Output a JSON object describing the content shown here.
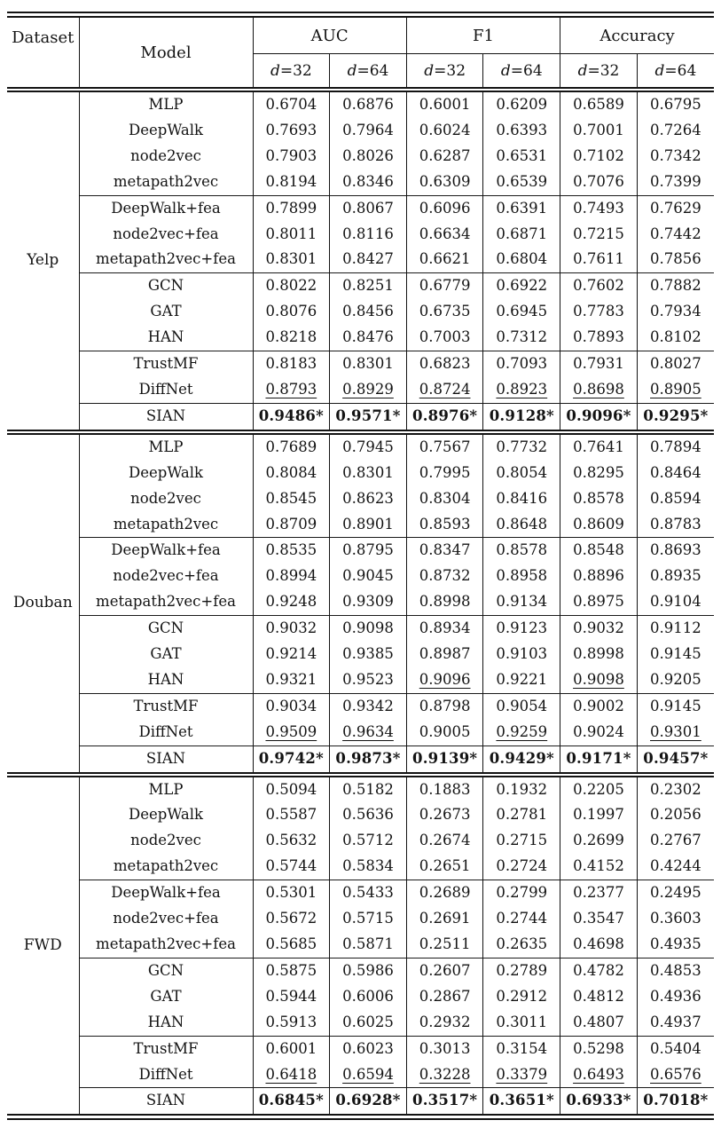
{
  "page": {
    "background": "#ffffff",
    "text_color": "#131313"
  },
  "table": {
    "header": {
      "dataset": "Dataset",
      "model": "Model",
      "metrics": [
        "AUC",
        "F1",
        "Accuracy"
      ],
      "dims": [
        "d=32",
        "d=64"
      ]
    },
    "sections": [
      {
        "dataset": "Yelp",
        "groups": [
          {
            "rows": [
              {
                "model": "MLP",
                "values": [
                  "0.6704",
                  "0.6876",
                  "0.6001",
                  "0.6209",
                  "0.6589",
                  "0.6795"
                ]
              },
              {
                "model": "DeepWalk",
                "values": [
                  "0.7693",
                  "0.7964",
                  "0.6024",
                  "0.6393",
                  "0.7001",
                  "0.7264"
                ]
              },
              {
                "model": "node2vec",
                "values": [
                  "0.7903",
                  "0.8026",
                  "0.6287",
                  "0.6531",
                  "0.7102",
                  "0.7342"
                ]
              },
              {
                "model": "metapath2vec",
                "values": [
                  "0.8194",
                  "0.8346",
                  "0.6309",
                  "0.6539",
                  "0.7076",
                  "0.7399"
                ]
              }
            ]
          },
          {
            "rows": [
              {
                "model": "DeepWalk+fea",
                "values": [
                  "0.7899",
                  "0.8067",
                  "0.6096",
                  "0.6391",
                  "0.7493",
                  "0.7629"
                ]
              },
              {
                "model": "node2vec+fea",
                "values": [
                  "0.8011",
                  "0.8116",
                  "0.6634",
                  "0.6871",
                  "0.7215",
                  "0.7442"
                ]
              },
              {
                "model": "metapath2vec+fea",
                "values": [
                  "0.8301",
                  "0.8427",
                  "0.6621",
                  "0.6804",
                  "0.7611",
                  "0.7856"
                ]
              }
            ]
          },
          {
            "rows": [
              {
                "model": "GCN",
                "values": [
                  "0.8022",
                  "0.8251",
                  "0.6779",
                  "0.6922",
                  "0.7602",
                  "0.7882"
                ]
              },
              {
                "model": "GAT",
                "values": [
                  "0.8076",
                  "0.8456",
                  "0.6735",
                  "0.6945",
                  "0.7783",
                  "0.7934"
                ]
              },
              {
                "model": "HAN",
                "values": [
                  "0.8218",
                  "0.8476",
                  "0.7003",
                  "0.7312",
                  "0.7893",
                  "0.8102"
                ]
              }
            ]
          },
          {
            "rows": [
              {
                "model": "TrustMF",
                "values": [
                  "0.8183",
                  "0.8301",
                  "0.6823",
                  "0.7093",
                  "0.7931",
                  "0.8027"
                ]
              },
              {
                "model": "DiffNet",
                "values": [
                  "0.8793",
                  "0.8929",
                  "0.8724",
                  "0.8923",
                  "0.8698",
                  "0.8905"
                ],
                "underline": [
                  0,
                  1,
                  2,
                  3,
                  4,
                  5
                ]
              }
            ]
          },
          {
            "rows": [
              {
                "model": "SIAN",
                "values": [
                  "0.9486*",
                  "0.9571*",
                  "0.8976*",
                  "0.9128*",
                  "0.9096*",
                  "0.9295*"
                ],
                "bold": true
              }
            ]
          }
        ]
      },
      {
        "dataset": "Douban",
        "groups": [
          {
            "rows": [
              {
                "model": "MLP",
                "values": [
                  "0.7689",
                  "0.7945",
                  "0.7567",
                  "0.7732",
                  "0.7641",
                  "0.7894"
                ]
              },
              {
                "model": "DeepWalk",
                "values": [
                  "0.8084",
                  "0.8301",
                  "0.7995",
                  "0.8054",
                  "0.8295",
                  "0.8464"
                ]
              },
              {
                "model": "node2vec",
                "values": [
                  "0.8545",
                  "0.8623",
                  "0.8304",
                  "0.8416",
                  "0.8578",
                  "0.8594"
                ]
              },
              {
                "model": "metapath2vec",
                "values": [
                  "0.8709",
                  "0.8901",
                  "0.8593",
                  "0.8648",
                  "0.8609",
                  "0.8783"
                ]
              }
            ]
          },
          {
            "rows": [
              {
                "model": "DeepWalk+fea",
                "values": [
                  "0.8535",
                  "0.8795",
                  "0.8347",
                  "0.8578",
                  "0.8548",
                  "0.8693"
                ]
              },
              {
                "model": "node2vec+fea",
                "values": [
                  "0.8994",
                  "0.9045",
                  "0.8732",
                  "0.8958",
                  "0.8896",
                  "0.8935"
                ]
              },
              {
                "model": "metapath2vec+fea",
                "values": [
                  "0.9248",
                  "0.9309",
                  "0.8998",
                  "0.9134",
                  "0.8975",
                  "0.9104"
                ]
              }
            ]
          },
          {
            "rows": [
              {
                "model": "GCN",
                "values": [
                  "0.9032",
                  "0.9098",
                  "0.8934",
                  "0.9123",
                  "0.9032",
                  "0.9112"
                ]
              },
              {
                "model": "GAT",
                "values": [
                  "0.9214",
                  "0.9385",
                  "0.8987",
                  "0.9103",
                  "0.8998",
                  "0.9145"
                ]
              },
              {
                "model": "HAN",
                "values": [
                  "0.9321",
                  "0.9523",
                  "0.9096",
                  "0.9221",
                  "0.9098",
                  "0.9205"
                ],
                "underline": [
                  2,
                  4
                ]
              }
            ]
          },
          {
            "rows": [
              {
                "model": "TrustMF",
                "values": [
                  "0.9034",
                  "0.9342",
                  "0.8798",
                  "0.9054",
                  "0.9002",
                  "0.9145"
                ]
              },
              {
                "model": "DiffNet",
                "values": [
                  "0.9509",
                  "0.9634",
                  "0.9005",
                  "0.9259",
                  "0.9024",
                  "0.9301"
                ],
                "underline": [
                  0,
                  1,
                  3,
                  5
                ]
              }
            ]
          },
          {
            "rows": [
              {
                "model": "SIAN",
                "values": [
                  "0.9742*",
                  "0.9873*",
                  "0.9139*",
                  "0.9429*",
                  "0.9171*",
                  "0.9457*"
                ],
                "bold": true
              }
            ]
          }
        ]
      },
      {
        "dataset": "FWD",
        "groups": [
          {
            "rows": [
              {
                "model": "MLP",
                "values": [
                  "0.5094",
                  "0.5182",
                  "0.1883",
                  "0.1932",
                  "0.2205",
                  "0.2302"
                ]
              },
              {
                "model": "DeepWalk",
                "values": [
                  "0.5587",
                  "0.5636",
                  "0.2673",
                  "0.2781",
                  "0.1997",
                  "0.2056"
                ]
              },
              {
                "model": "node2vec",
                "values": [
                  "0.5632",
                  "0.5712",
                  "0.2674",
                  "0.2715",
                  "0.2699",
                  "0.2767"
                ]
              },
              {
                "model": "metapath2vec",
                "values": [
                  "0.5744",
                  "0.5834",
                  "0.2651",
                  "0.2724",
                  "0.4152",
                  "0.4244"
                ]
              }
            ]
          },
          {
            "rows": [
              {
                "model": "DeepWalk+fea",
                "values": [
                  "0.5301",
                  "0.5433",
                  "0.2689",
                  "0.2799",
                  "0.2377",
                  "0.2495"
                ]
              },
              {
                "model": "node2vec+fea",
                "values": [
                  "0.5672",
                  "0.5715",
                  "0.2691",
                  "0.2744",
                  "0.3547",
                  "0.3603"
                ]
              },
              {
                "model": "metapath2vec+fea",
                "values": [
                  "0.5685",
                  "0.5871",
                  "0.2511",
                  "0.2635",
                  "0.4698",
                  "0.4935"
                ]
              }
            ]
          },
          {
            "rows": [
              {
                "model": "GCN",
                "values": [
                  "0.5875",
                  "0.5986",
                  "0.2607",
                  "0.2789",
                  "0.4782",
                  "0.4853"
                ]
              },
              {
                "model": "GAT",
                "values": [
                  "0.5944",
                  "0.6006",
                  "0.2867",
                  "0.2912",
                  "0.4812",
                  "0.4936"
                ]
              },
              {
                "model": "HAN",
                "values": [
                  "0.5913",
                  "0.6025",
                  "0.2932",
                  "0.3011",
                  "0.4807",
                  "0.4937"
                ]
              }
            ]
          },
          {
            "rows": [
              {
                "model": "TrustMF",
                "values": [
                  "0.6001",
                  "0.6023",
                  "0.3013",
                  "0.3154",
                  "0.5298",
                  "0.5404"
                ]
              },
              {
                "model": "DiffNet",
                "values": [
                  "0.6418",
                  "0.6594",
                  "0.3228",
                  "0.3379",
                  "0.6493",
                  "0.6576"
                ],
                "underline": [
                  0,
                  1,
                  2,
                  3,
                  4,
                  5
                ]
              }
            ]
          },
          {
            "rows": [
              {
                "model": "SIAN",
                "values": [
                  "0.6845*",
                  "0.6928*",
                  "0.3517*",
                  "0.3651*",
                  "0.6933*",
                  "0.7018*"
                ],
                "bold": true
              }
            ]
          }
        ]
      }
    ]
  }
}
